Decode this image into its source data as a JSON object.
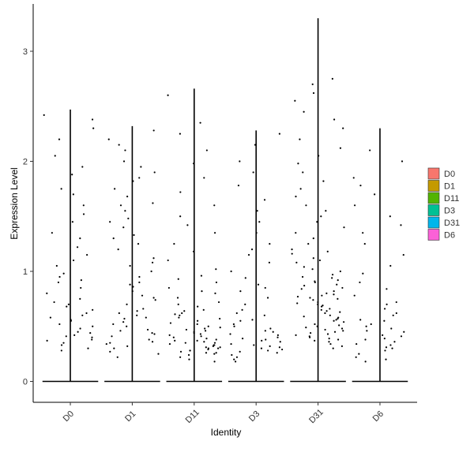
{
  "chart_data": {
    "type": "violin",
    "x_label": "Identity",
    "y_label": "Expression Level",
    "categories": [
      "D0",
      "D1",
      "D11",
      "D3",
      "D31",
      "D6"
    ],
    "colors": [
      "#F8766D",
      "#C49A00",
      "#53B400",
      "#00C094",
      "#00B6EB",
      "#FB61D7"
    ],
    "ylim": [
      -0.19,
      3.43
    ],
    "yticks": [
      0,
      1,
      2,
      3
    ],
    "violin_max": [
      2.47,
      2.32,
      2.66,
      2.28,
      3.3,
      2.3
    ],
    "points": [
      [
        2.42,
        2.38,
        2.2,
        2.05,
        1.95,
        1.88,
        1.75,
        1.6,
        1.52,
        1.45,
        1.3,
        1.22,
        1.15,
        1.05,
        0.98,
        0.92,
        0.85,
        0.8,
        0.75,
        0.7,
        0.65,
        0.62,
        0.58,
        0.55,
        0.5,
        0.48,
        0.45,
        0.42,
        0.4,
        0.38,
        0.35,
        0.33,
        0.3,
        0.28,
        1.35,
        0.95,
        0.68,
        0.52,
        2.3,
        1.7,
        0.6,
        0.44,
        0.37,
        0.9,
        1.1,
        0.56,
        0.41,
        0.72
      ],
      [
        2.28,
        2.2,
        2.1,
        2.0,
        1.95,
        1.9,
        1.82,
        1.75,
        1.68,
        1.6,
        1.55,
        1.48,
        1.4,
        1.33,
        1.25,
        1.2,
        1.12,
        1.05,
        1.0,
        0.95,
        0.9,
        0.86,
        0.82,
        0.78,
        0.74,
        0.7,
        0.66,
        0.62,
        0.6,
        0.57,
        0.54,
        0.5,
        0.47,
        0.44,
        0.41,
        0.38,
        0.35,
        0.32,
        0.3,
        0.27,
        0.25,
        0.22,
        1.85,
        1.3,
        0.88,
        0.64,
        0.52,
        0.43,
        0.36,
        1.62,
        1.08,
        0.76,
        0.58,
        0.46,
        0.34,
        2.15,
        1.45
      ],
      [
        2.6,
        2.35,
        2.25,
        2.1,
        1.98,
        1.85,
        1.72,
        1.6,
        1.5,
        1.42,
        1.35,
        1.25,
        1.18,
        1.1,
        1.02,
        0.96,
        0.9,
        0.85,
        0.8,
        0.76,
        0.72,
        0.68,
        0.65,
        0.62,
        0.6,
        0.58,
        0.55,
        0.53,
        0.5,
        0.48,
        0.46,
        0.44,
        0.42,
        0.4,
        0.38,
        0.37,
        0.36,
        0.35,
        0.34,
        0.33,
        0.32,
        0.31,
        0.3,
        0.29,
        0.28,
        0.27,
        0.26,
        0.25,
        0.24,
        0.22,
        0.2,
        0.18,
        0.52,
        0.47,
        0.43,
        0.39,
        0.35,
        0.31,
        0.28,
        0.7,
        0.64,
        0.57,
        0.49,
        0.41,
        0.33,
        0.26,
        0.93,
        0.82,
        0.61,
        0.45,
        0.37,
        0.3
      ],
      [
        2.25,
        2.15,
        2.0,
        1.9,
        1.78,
        1.65,
        1.55,
        1.45,
        1.35,
        1.25,
        1.15,
        1.08,
        1.0,
        0.94,
        0.88,
        0.82,
        0.76,
        0.7,
        0.65,
        0.6,
        0.56,
        0.52,
        0.48,
        0.45,
        0.42,
        0.4,
        0.38,
        0.36,
        0.34,
        0.32,
        0.3,
        0.28,
        0.26,
        0.24,
        0.22,
        0.2,
        0.18,
        0.5,
        0.43,
        0.37,
        0.31,
        0.27,
        0.62,
        0.55,
        0.46,
        0.39,
        0.33,
        0.29,
        1.2,
        0.85
      ],
      [
        2.75,
        2.7,
        2.62,
        2.55,
        2.45,
        2.38,
        2.3,
        2.2,
        2.12,
        2.05,
        1.98,
        1.9,
        1.82,
        1.75,
        1.68,
        1.6,
        1.55,
        1.5,
        1.45,
        1.4,
        1.35,
        1.3,
        1.25,
        1.2,
        1.16,
        1.12,
        1.08,
        1.04,
        1.0,
        0.97,
        0.94,
        0.91,
        0.88,
        0.85,
        0.82,
        0.8,
        0.78,
        0.76,
        0.74,
        0.72,
        0.7,
        0.68,
        0.66,
        0.64,
        0.62,
        0.6,
        0.58,
        0.56,
        0.54,
        0.52,
        0.5,
        0.48,
        0.46,
        0.44,
        0.42,
        0.4,
        0.38,
        0.36,
        0.34,
        0.32,
        0.3,
        0.95,
        0.87,
        0.79,
        0.71,
        0.63,
        0.55,
        0.47,
        0.39,
        1.1,
        0.9,
        0.75,
        0.65,
        0.57,
        0.49,
        0.43,
        0.37,
        1.02,
        0.84,
        0.69,
        0.59,
        0.51,
        0.45,
        0.41,
        1.18,
        0.92,
        0.77
      ],
      [
        2.1,
        2.0,
        1.85,
        1.78,
        1.7,
        1.6,
        1.5,
        1.42,
        1.35,
        1.25,
        1.15,
        1.05,
        0.98,
        0.9,
        0.84,
        0.78,
        0.72,
        0.66,
        0.6,
        0.56,
        0.52,
        0.48,
        0.45,
        0.42,
        0.39,
        0.36,
        0.33,
        0.3,
        0.28,
        0.25,
        0.22,
        0.2,
        0.18,
        0.55,
        0.46,
        0.38,
        0.31,
        0.7,
        0.62,
        0.5,
        0.41,
        0.34
      ]
    ]
  }
}
